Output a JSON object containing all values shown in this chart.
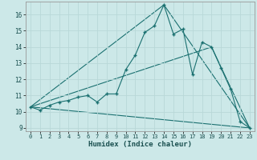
{
  "xlabel": "Humidex (Indice chaleur)",
  "ylabel": "",
  "bg_color": "#cce8e8",
  "grid_color": "#b8d8d8",
  "line_color": "#1a7070",
  "xlim": [
    -0.5,
    23.5
  ],
  "ylim": [
    8.8,
    16.8
  ],
  "xticks": [
    0,
    1,
    2,
    3,
    4,
    5,
    6,
    7,
    8,
    9,
    10,
    11,
    12,
    13,
    14,
    15,
    16,
    17,
    18,
    19,
    20,
    21,
    22,
    23
  ],
  "yticks": [
    9,
    10,
    11,
    12,
    13,
    14,
    15,
    16
  ],
  "line1_x": [
    0,
    1,
    2,
    3,
    4,
    5,
    6,
    7,
    8,
    9,
    10,
    11,
    12,
    13,
    14,
    15,
    16,
    17,
    18,
    19,
    20,
    21,
    22,
    23
  ],
  "line1_y": [
    10.3,
    10.1,
    10.4,
    10.6,
    10.7,
    10.9,
    11.0,
    10.6,
    11.1,
    11.1,
    12.6,
    13.5,
    14.9,
    15.3,
    16.6,
    14.8,
    15.1,
    12.3,
    14.3,
    14.0,
    12.7,
    11.4,
    9.4,
    9.0
  ],
  "line2_x": [
    0,
    23
  ],
  "line2_y": [
    10.3,
    9.0
  ],
  "line3_x": [
    0,
    14,
    23
  ],
  "line3_y": [
    10.3,
    16.6,
    9.0
  ],
  "line4_x": [
    0,
    19,
    23
  ],
  "line4_y": [
    10.3,
    14.0,
    9.0
  ]
}
